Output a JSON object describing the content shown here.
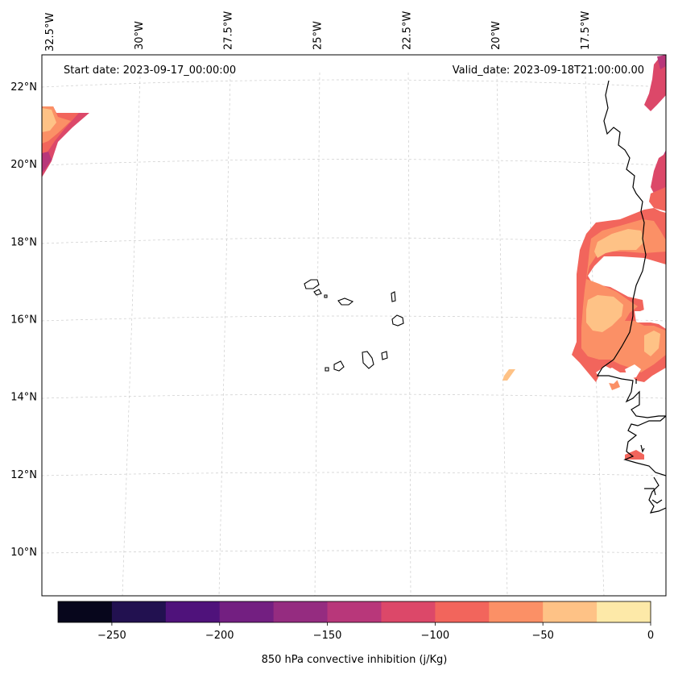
{
  "annotations": {
    "start_date": "Start date: 2023-09-17_00:00:00",
    "valid_date": "Valid_date: 2023-09-18T21:00:00.00"
  },
  "longitude_ticks": [
    {
      "label": "32.5°W",
      "value": -32.5
    },
    {
      "label": "30°W",
      "value": -30
    },
    {
      "label": "27.5°W",
      "value": -27.5
    },
    {
      "label": "25°W",
      "value": -25
    },
    {
      "label": "22.5°W",
      "value": -22.5
    },
    {
      "label": "20°W",
      "value": -20
    },
    {
      "label": "17.5°W",
      "value": -17.5
    }
  ],
  "latitude_ticks": [
    {
      "label": "22°N",
      "value": 22
    },
    {
      "label": "20°N",
      "value": 20
    },
    {
      "label": "18°N",
      "value": 18
    },
    {
      "label": "16°N",
      "value": 16
    },
    {
      "label": "14°N",
      "value": 14
    },
    {
      "label": "12°N",
      "value": 12
    },
    {
      "label": "10°N",
      "value": 10
    }
  ],
  "colorbar": {
    "label": "850 hPa convective inhibition (j/Kg)",
    "range": [
      -275,
      0
    ],
    "levels": [
      -275,
      -250,
      -225,
      -200,
      -175,
      -150,
      -125,
      -100,
      -75,
      -50,
      -25,
      0
    ],
    "tick_labels": [
      {
        "label": "−250",
        "value": -250
      },
      {
        "label": "−200",
        "value": -200
      },
      {
        "label": "−150",
        "value": -150
      },
      {
        "label": "−100",
        "value": -100
      },
      {
        "label": "−50",
        "value": -50
      },
      {
        "label": "0",
        "value": 0
      }
    ],
    "colors": [
      "#07061c",
      "#221150",
      "#4f127b",
      "#731f81",
      "#952c80",
      "#b8377a",
      "#dc4869",
      "#f2655c",
      "#fb9066",
      "#fec286",
      "#fde9a8"
    ]
  }
}
